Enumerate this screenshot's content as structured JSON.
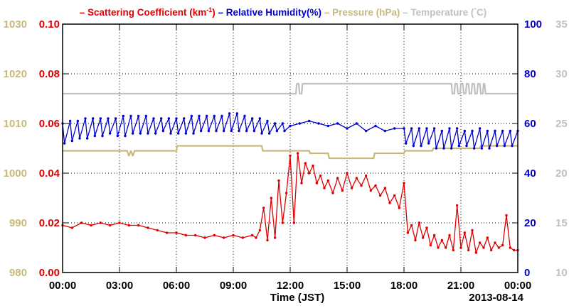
{
  "chart_data": {
    "type": "line",
    "legend": {
      "position": "top",
      "items": [
        {
          "name": "Scattering Coefficient (km",
          "sup": "-1",
          "tail": ")",
          "color": "#e00000"
        },
        {
          "name": "Relative Humidity(%)",
          "color": "#0000cc"
        },
        {
          "name": "Pressure (hPa)",
          "color": "#c8b97a"
        },
        {
          "name": "Temperature (",
          "deg": "°",
          "tail": "C)",
          "color": "#c0c0c0"
        }
      ]
    },
    "xlabel": "Time (JST)",
    "date_label": "2013-08-14",
    "x_ticks": [
      "00:00",
      "03:00",
      "06:00",
      "09:00",
      "12:00",
      "15:00",
      "18:00",
      "21:00",
      "00:00"
    ],
    "xlim": [
      0,
      24
    ],
    "grid": true,
    "axes": {
      "pressure": {
        "side": "far-left",
        "range": [
          980,
          1030
        ],
        "ticks": [
          "980",
          "990",
          "1000",
          "1010",
          "1020",
          "1030"
        ],
        "color": "#c8b97a"
      },
      "scattering": {
        "side": "left",
        "range": [
          0,
          0.1
        ],
        "ticks": [
          "0.00",
          "0.02",
          "0.04",
          "0.06",
          "0.08",
          "0.10"
        ],
        "color": "#e00000"
      },
      "humidity": {
        "side": "right",
        "range": [
          0,
          100
        ],
        "ticks": [
          "0",
          "20",
          "40",
          "60",
          "80",
          "100"
        ],
        "color": "#0000cc"
      },
      "temperature": {
        "side": "far-right",
        "range": [
          10,
          35
        ],
        "ticks": [
          "10",
          "15",
          "20",
          "25",
          "30",
          "35"
        ],
        "color": "#c0c0c0"
      }
    },
    "series": [
      {
        "key": "scattering",
        "axis": "scattering",
        "color": "#e00000",
        "x": [
          0,
          0.5,
          1,
          1.5,
          2,
          2.5,
          3,
          3.5,
          4,
          4.5,
          5,
          5.5,
          6,
          6.5,
          7,
          7.5,
          8,
          8.5,
          9,
          9.5,
          10,
          10.2,
          10.4,
          10.6,
          10.8,
          11,
          11.2,
          11.4,
          11.6,
          11.8,
          12,
          12.2,
          12.4,
          12.6,
          12.8,
          13,
          13.2,
          13.4,
          13.6,
          13.8,
          14,
          14.25,
          14.5,
          14.75,
          15,
          15.25,
          15.5,
          15.75,
          16,
          16.25,
          16.5,
          16.75,
          17,
          17.25,
          17.5,
          17.75,
          18,
          18.2,
          18.4,
          18.6,
          18.8,
          19,
          19.2,
          19.4,
          19.6,
          19.8,
          20,
          20.2,
          20.4,
          20.6,
          20.8,
          21,
          21.2,
          21.4,
          21.6,
          21.8,
          22,
          22.2,
          22.4,
          22.6,
          22.8,
          23,
          23.2,
          23.4,
          23.6,
          23.8,
          24
        ],
        "y": [
          0.019,
          0.018,
          0.02,
          0.019,
          0.02,
          0.019,
          0.02,
          0.019,
          0.019,
          0.018,
          0.017,
          0.016,
          0.016,
          0.015,
          0.015,
          0.014,
          0.015,
          0.014,
          0.015,
          0.014,
          0.015,
          0.014,
          0.017,
          0.026,
          0.013,
          0.03,
          0.014,
          0.037,
          0.02,
          0.032,
          0.047,
          0.02,
          0.048,
          0.036,
          0.044,
          0.04,
          0.043,
          0.036,
          0.039,
          0.034,
          0.037,
          0.032,
          0.038,
          0.033,
          0.04,
          0.034,
          0.038,
          0.035,
          0.039,
          0.033,
          0.035,
          0.031,
          0.034,
          0.028,
          0.031,
          0.026,
          0.036,
          0.016,
          0.019,
          0.013,
          0.02,
          0.014,
          0.018,
          0.011,
          0.015,
          0.01,
          0.013,
          0.01,
          0.015,
          0.009,
          0.027,
          0.01,
          0.016,
          0.009,
          0.017,
          0.008,
          0.012,
          0.01,
          0.014,
          0.009,
          0.012,
          0.01,
          0.011,
          0.023,
          0.01,
          0.009,
          0.009
        ]
      },
      {
        "key": "humidity",
        "axis": "humidity",
        "color": "#0000cc",
        "x": [
          0,
          0.1,
          0.4,
          0.5,
          0.8,
          0.9,
          1.2,
          1.3,
          1.6,
          1.7,
          2,
          2.1,
          2.4,
          2.5,
          2.8,
          2.9,
          3.2,
          3.3,
          3.6,
          3.7,
          4,
          4.1,
          4.4,
          4.5,
          4.8,
          4.9,
          5.2,
          5.3,
          5.6,
          5.7,
          6,
          6.1,
          6.4,
          6.5,
          6.8,
          6.9,
          7.2,
          7.3,
          7.6,
          7.7,
          8,
          8.1,
          8.4,
          8.5,
          8.8,
          8.9,
          9.2,
          9.3,
          9.6,
          9.7,
          10,
          10.1,
          10.4,
          10.5,
          10.8,
          10.9,
          11.2,
          11.3,
          11.6,
          11.7,
          12,
          12.5,
          13,
          13.5,
          14,
          14.5,
          15,
          15.5,
          16,
          16.5,
          17,
          17.5,
          18,
          18.1,
          18.4,
          18.5,
          18.8,
          18.9,
          19.2,
          19.3,
          19.6,
          19.7,
          20,
          20.1,
          20.4,
          20.5,
          20.8,
          20.9,
          21.2,
          21.3,
          21.6,
          21.7,
          22,
          22.1,
          22.4,
          22.5,
          22.8,
          22.9,
          23.2,
          23.3,
          23.6,
          23.7,
          24
        ],
        "y": [
          60,
          52,
          61,
          53,
          61,
          54,
          62,
          54,
          62,
          55,
          62,
          55,
          62,
          56,
          62,
          55,
          63,
          55,
          63,
          56,
          63,
          56,
          63,
          56,
          62,
          56,
          62,
          57,
          62,
          56,
          62,
          56,
          62,
          56,
          63,
          56,
          63,
          57,
          63,
          57,
          63,
          57,
          63,
          57,
          64,
          57,
          64,
          57,
          63,
          57,
          62,
          57,
          62,
          56,
          61,
          56,
          60,
          57,
          60,
          57,
          59,
          60,
          61,
          60,
          59,
          60,
          58,
          60,
          57,
          59,
          57,
          58,
          58,
          52,
          58,
          51,
          58,
          51,
          58,
          52,
          58,
          50,
          57,
          50,
          58,
          50,
          58,
          51,
          57,
          51,
          57,
          50,
          58,
          50,
          57,
          50,
          57,
          51,
          57,
          51,
          57,
          51,
          57
        ]
      },
      {
        "key": "pressure",
        "axis": "pressure",
        "color": "#c8b97a",
        "x": [
          0,
          3.4,
          3.5,
          3.6,
          3.7,
          3.8,
          6,
          6.05,
          10.5,
          10.55,
          13.0,
          13.05,
          14.0,
          14.05,
          16.4,
          16.45,
          18.0,
          18.05,
          19.5,
          19.55,
          22.0,
          22.05,
          24
        ],
        "y": [
          1004.5,
          1004.5,
          1003.5,
          1004.5,
          1003.5,
          1004.5,
          1004.5,
          1005.5,
          1005.5,
          1004.5,
          1004.5,
          1004.0,
          1004.0,
          1003.0,
          1003.0,
          1004.0,
          1004.0,
          1004.5,
          1004.5,
          1005.0,
          1005.0,
          1005.5,
          1005.5
        ]
      },
      {
        "key": "temperature",
        "axis": "temperature",
        "color": "#c0c0c0",
        "x": [
          0,
          12.3,
          12.35,
          12.45,
          12.5,
          12.6,
          12.65,
          12.75,
          12.8,
          20.5,
          20.55,
          20.65,
          20.7,
          20.8,
          20.85,
          20.95,
          21.0,
          21.1,
          21.15,
          21.25,
          21.3,
          21.4,
          21.45,
          21.55,
          21.6,
          21.7,
          21.75,
          21.85,
          21.9,
          22.0,
          22.05,
          22.15,
          22.2,
          22.25,
          22.3,
          22.35,
          22.4,
          24
        ],
        "y": [
          28,
          28,
          29,
          29,
          28,
          28,
          29,
          29,
          29,
          29,
          28,
          28,
          29,
          29,
          28,
          28,
          29,
          29,
          28,
          28,
          29,
          29,
          28,
          28,
          29,
          29,
          28,
          28,
          29,
          29,
          28,
          28,
          29,
          29,
          28,
          28,
          28,
          28
        ]
      }
    ]
  }
}
